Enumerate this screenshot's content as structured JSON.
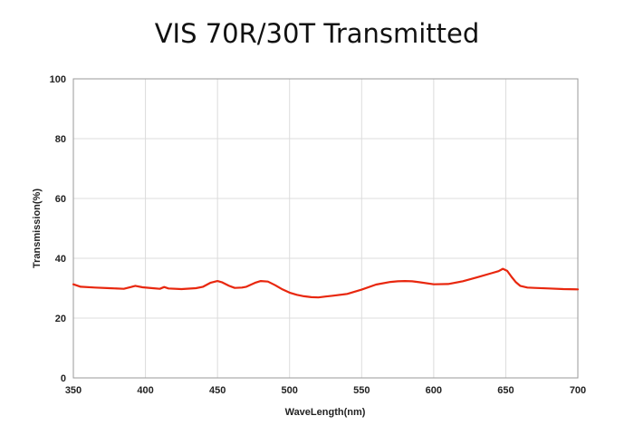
{
  "chart_data": {
    "type": "line",
    "title": "VIS 70R/30T Transmitted",
    "xlabel": "WaveLength(nm)",
    "ylabel": "Transmission(%)",
    "xlim": [
      350,
      700
    ],
    "ylim": [
      0,
      100
    ],
    "xticks": [
      "350",
      "400",
      "450",
      "500",
      "550",
      "600",
      "650",
      "700"
    ],
    "yticks": [
      "0",
      "20",
      "40",
      "60",
      "80",
      "100"
    ],
    "grid": true,
    "legend": "none",
    "line_color": "#e8270e",
    "series": [
      {
        "x": [
          350,
          355,
          365,
          375,
          385,
          390,
          393,
          398,
          405,
          410,
          413,
          416,
          425,
          435,
          440,
          445,
          450,
          453,
          458,
          462,
          467,
          470,
          476,
          480,
          485,
          490,
          495,
          500,
          505,
          510,
          515,
          520,
          525,
          530,
          540,
          550,
          560,
          570,
          575,
          580,
          585,
          590,
          600,
          610,
          620,
          630,
          640,
          645,
          648,
          651,
          654,
          657,
          660,
          665,
          670,
          680,
          690,
          700
        ],
        "y": [
          31.3,
          30.5,
          30.2,
          30.0,
          29.8,
          30.4,
          30.8,
          30.3,
          30.0,
          29.8,
          30.4,
          29.9,
          29.7,
          30.0,
          30.5,
          31.8,
          32.4,
          32.0,
          30.8,
          30.1,
          30.2,
          30.5,
          31.8,
          32.4,
          32.2,
          31.0,
          29.6,
          28.5,
          27.8,
          27.3,
          27.0,
          26.9,
          27.2,
          27.5,
          28.1,
          29.5,
          31.2,
          32.1,
          32.3,
          32.4,
          32.3,
          32.0,
          31.3,
          31.4,
          32.3,
          33.6,
          35.0,
          35.7,
          36.5,
          35.8,
          33.8,
          32.0,
          30.8,
          30.2,
          30.1,
          29.9,
          29.7,
          29.6
        ]
      }
    ]
  }
}
